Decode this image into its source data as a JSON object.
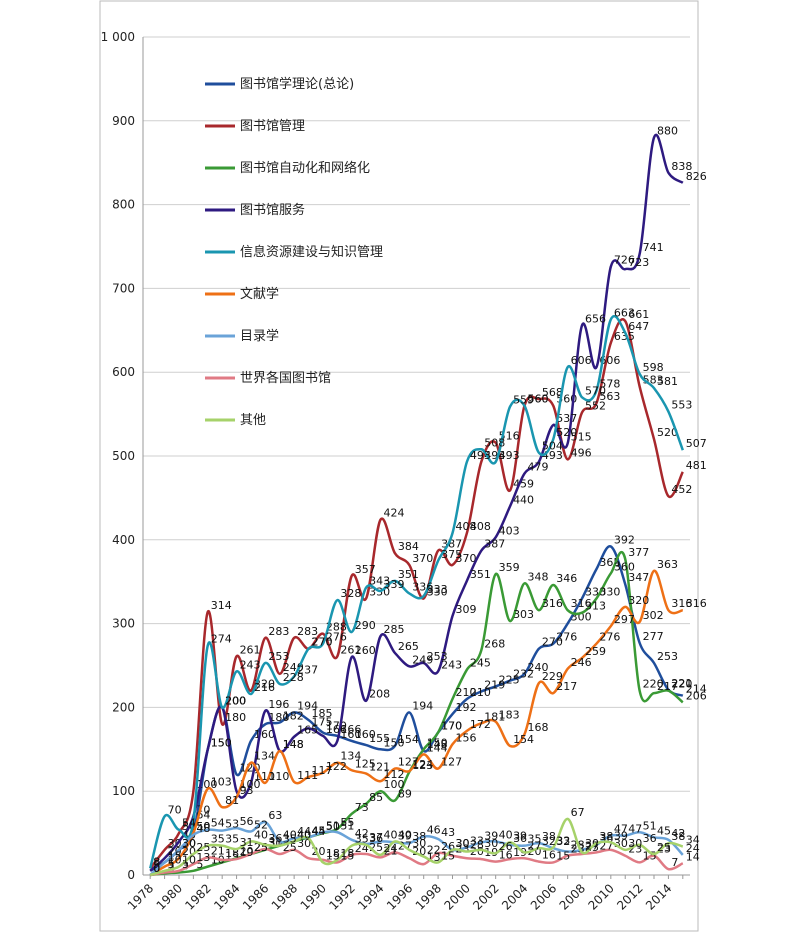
{
  "chart_data": {
    "type": "line",
    "categories": [
      1978,
      null,
      1980,
      null,
      1982,
      null,
      1984,
      null,
      1986,
      null,
      1988,
      null,
      1990,
      null,
      1992,
      null,
      1994,
      null,
      1996,
      null,
      1998,
      null,
      2000,
      null,
      2002,
      null,
      2004,
      null,
      2006,
      null,
      2008,
      null,
      2010,
      null,
      2012,
      null,
      2014,
      null
    ],
    "ylim": [
      0,
      1000
    ],
    "yticks": [
      0,
      100,
      200,
      300,
      400,
      500,
      600,
      700,
      800,
      900,
      {
        "value": 1000,
        "label": "1 000"
      }
    ],
    "grid": true,
    "legend": "upper left",
    "series": [
      {
        "name": "图书馆学理论(总论)",
        "color": "#1f4e9c",
        "values": [
          5,
          15,
          30,
          50,
          150,
          200,
          120,
          160,
          180,
          182,
          194,
          185,
          170,
          166,
          160,
          155,
          150,
          154,
          194,
          148,
          170,
          192,
          210,
          219,
          225,
          232,
          240,
          270,
          276,
          300,
          330,
          365,
          392,
          347,
          277,
          253,
          221,
          214
        ]
      },
      {
        "name": "图书馆管理",
        "color": "#a8282c",
        "values": [
          8,
          30,
          50,
          100,
          314,
          180,
          261,
          220,
          283,
          240,
          283,
          270,
          288,
          261,
          357,
          330,
          424,
          384,
          370,
          330,
          387,
          370,
          408,
          493,
          516,
          459,
          560,
          568,
          560,
          496,
          552,
          563,
          635,
          661,
          583,
          520,
          452,
          481
        ]
      },
      {
        "name": "图书馆自动化和网络化",
        "color": "#3a9a35",
        "values": [
          0,
          2,
          3,
          5,
          10,
          15,
          20,
          25,
          30,
          35,
          40,
          45,
          50,
          55,
          73,
          85,
          100,
          89,
          123,
          150,
          170,
          210,
          245,
          268,
          359,
          303,
          348,
          316,
          346,
          316,
          313,
          330,
          360,
          377,
          220,
          217,
          220,
          206
        ]
      },
      {
        "name": "图书馆服务",
        "color": "#2e1a80",
        "values": [
          5,
          20,
          40,
          70,
          150,
          200,
          100,
          110,
          196,
          148,
          165,
          175,
          166,
          160,
          260,
          208,
          285,
          265,
          249,
          253,
          243,
          309,
          351,
          387,
          403,
          440,
          479,
          493,
          537,
          515,
          656,
          606,
          726,
          723,
          741,
          880,
          838,
          826
        ]
      },
      {
        "name": "信息资源建设与知识管理",
        "color": "#1a96b0",
        "values": [
          8,
          70,
          54,
          64,
          274,
          200,
          243,
          216,
          253,
          228,
          237,
          270,
          276,
          328,
          290,
          343,
          339,
          351,
          336,
          333,
          375,
          408,
          493,
          508,
          493,
          559,
          560,
          504,
          520,
          606,
          570,
          578,
          663,
          647,
          598,
          581,
          553,
          507
        ]
      },
      {
        "name": "文献学",
        "color": "#ee7016",
        "values": [
          0,
          10,
          20,
          50,
          103,
          81,
          93,
          134,
          110,
          148,
          111,
          117,
          122,
          134,
          125,
          121,
          112,
          127,
          124,
          144,
          127,
          156,
          172,
          181,
          183,
          154,
          168,
          229,
          217,
          246,
          259,
          276,
          297,
          320,
          302,
          363,
          316,
          316
        ]
      },
      {
        "name": "目录学",
        "color": "#6aa3d8",
        "values": [
          0,
          15,
          30,
          48,
          54,
          53,
          56,
          52,
          63,
          40,
          44,
          45,
          51,
          51,
          42,
          37,
          40,
          39,
          38,
          46,
          43,
          30,
          33,
          39,
          40,
          36,
          35,
          38,
          32,
          28,
          30,
          36,
          47,
          47,
          51,
          45,
          42,
          24
        ]
      },
      {
        "name": "世界各国图书馆",
        "color": "#e07a84",
        "values": [
          0,
          3,
          5,
          13,
          21,
          18,
          19,
          25,
          31,
          25,
          30,
          20,
          18,
          15,
          24,
          25,
          21,
          27,
          20,
          13,
          26,
          23,
          20,
          19,
          16,
          19,
          20,
          16,
          15,
          23,
          25,
          27,
          30,
          23,
          15,
          23,
          7,
          14
        ]
      },
      {
        "name": "其他",
        "color": "#a6d26a",
        "values": [
          0,
          5,
          10,
          25,
          35,
          35,
          31,
          40,
          36,
          35,
          40,
          44,
          15,
          18,
          35,
          36,
          24,
          40,
          30,
          22,
          15,
          30,
          28,
          30,
          26,
          39,
          27,
          32,
          33,
          67,
          27,
          38,
          39,
          30,
          36,
          25,
          38,
          34
        ]
      }
    ]
  }
}
